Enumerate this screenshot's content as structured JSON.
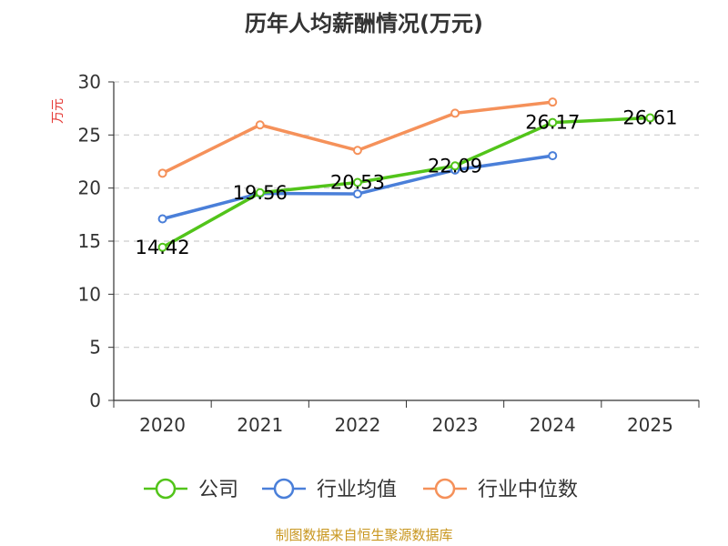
{
  "chart_data": {
    "type": "line",
    "title": "历年人均薪酬情况(万元)",
    "ylabel": "万元",
    "xlabel": "",
    "ylim": [
      0,
      30
    ],
    "yticks": [
      0,
      5,
      10,
      15,
      20,
      25,
      30
    ],
    "categories": [
      "2020",
      "2021",
      "2022",
      "2023",
      "2024",
      "2025"
    ],
    "grid": true,
    "legend_position": "bottom",
    "series": [
      {
        "name": "公司",
        "color": "#52c41a",
        "values": [
          14.42,
          19.56,
          20.53,
          22.09,
          26.17,
          26.61
        ],
        "show_labels": true,
        "labels": [
          "14.42",
          "19.56",
          "20.53",
          "22.09",
          "26.17",
          "26.61"
        ]
      },
      {
        "name": "行业均值",
        "color": "#4a7fd9",
        "values": [
          17.1,
          19.5,
          19.45,
          21.7,
          23.05,
          null
        ],
        "show_labels": false
      },
      {
        "name": "行业中位数",
        "color": "#f5915a",
        "values": [
          21.4,
          25.95,
          23.55,
          27.05,
          28.1,
          null
        ],
        "show_labels": false
      }
    ],
    "source": "制图数据来自恒生聚源数据库"
  }
}
